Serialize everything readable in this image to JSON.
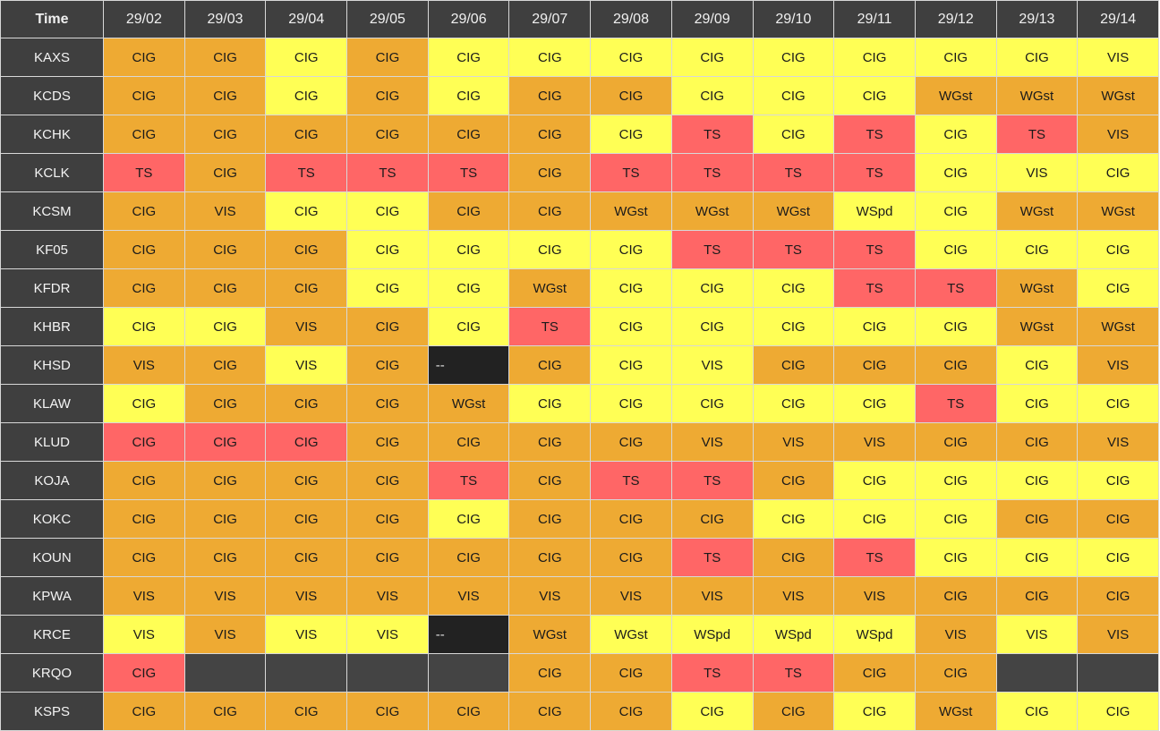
{
  "header": {
    "time_label": "Time",
    "dates": [
      "29/02",
      "29/03",
      "29/04",
      "29/05",
      "29/06",
      "29/07",
      "29/08",
      "29/09",
      "29/10",
      "29/11",
      "29/12",
      "29/13",
      "29/14"
    ]
  },
  "colors": {
    "y": "#ffff55",
    "o": "#eeaa33",
    "r": "#ff6666",
    "k": "#222222",
    "g": "#444444",
    "header_bg": "#3f3f3f"
  },
  "rows": [
    {
      "station": "KAXS",
      "cells": [
        [
          "CIG",
          "o"
        ],
        [
          "CIG",
          "o"
        ],
        [
          "CIG",
          "y"
        ],
        [
          "CIG",
          "o"
        ],
        [
          "CIG",
          "y"
        ],
        [
          "CIG",
          "y"
        ],
        [
          "CIG",
          "y"
        ],
        [
          "CIG",
          "y"
        ],
        [
          "CIG",
          "y"
        ],
        [
          "CIG",
          "y"
        ],
        [
          "CIG",
          "y"
        ],
        [
          "CIG",
          "y"
        ],
        [
          "VIS",
          "y"
        ]
      ]
    },
    {
      "station": "KCDS",
      "cells": [
        [
          "CIG",
          "o"
        ],
        [
          "CIG",
          "o"
        ],
        [
          "CIG",
          "y"
        ],
        [
          "CIG",
          "o"
        ],
        [
          "CIG",
          "y"
        ],
        [
          "CIG",
          "o"
        ],
        [
          "CIG",
          "o"
        ],
        [
          "CIG",
          "y"
        ],
        [
          "CIG",
          "y"
        ],
        [
          "CIG",
          "y"
        ],
        [
          "WGst",
          "o"
        ],
        [
          "WGst",
          "o"
        ],
        [
          "WGst",
          "o"
        ]
      ]
    },
    {
      "station": "KCHK",
      "cells": [
        [
          "CIG",
          "o"
        ],
        [
          "CIG",
          "o"
        ],
        [
          "CIG",
          "o"
        ],
        [
          "CIG",
          "o"
        ],
        [
          "CIG",
          "o"
        ],
        [
          "CIG",
          "o"
        ],
        [
          "CIG",
          "y"
        ],
        [
          "TS",
          "r"
        ],
        [
          "CIG",
          "y"
        ],
        [
          "TS",
          "r"
        ],
        [
          "CIG",
          "y"
        ],
        [
          "TS",
          "r"
        ],
        [
          "VIS",
          "o"
        ]
      ]
    },
    {
      "station": "KCLK",
      "cells": [
        [
          "TS",
          "r"
        ],
        [
          "CIG",
          "o"
        ],
        [
          "TS",
          "r"
        ],
        [
          "TS",
          "r"
        ],
        [
          "TS",
          "r"
        ],
        [
          "CIG",
          "o"
        ],
        [
          "TS",
          "r"
        ],
        [
          "TS",
          "r"
        ],
        [
          "TS",
          "r"
        ],
        [
          "TS",
          "r"
        ],
        [
          "CIG",
          "y"
        ],
        [
          "VIS",
          "y"
        ],
        [
          "CIG",
          "y"
        ]
      ]
    },
    {
      "station": "KCSM",
      "cells": [
        [
          "CIG",
          "o"
        ],
        [
          "VIS",
          "o"
        ],
        [
          "CIG",
          "y"
        ],
        [
          "CIG",
          "y"
        ],
        [
          "CIG",
          "o"
        ],
        [
          "CIG",
          "o"
        ],
        [
          "WGst",
          "o"
        ],
        [
          "WGst",
          "o"
        ],
        [
          "WGst",
          "o"
        ],
        [
          "WSpd",
          "y"
        ],
        [
          "CIG",
          "y"
        ],
        [
          "WGst",
          "o"
        ],
        [
          "WGst",
          "o"
        ]
      ]
    },
    {
      "station": "KF05",
      "cells": [
        [
          "CIG",
          "o"
        ],
        [
          "CIG",
          "o"
        ],
        [
          "CIG",
          "o"
        ],
        [
          "CIG",
          "y"
        ],
        [
          "CIG",
          "y"
        ],
        [
          "CIG",
          "y"
        ],
        [
          "CIG",
          "y"
        ],
        [
          "TS",
          "r"
        ],
        [
          "TS",
          "r"
        ],
        [
          "TS",
          "r"
        ],
        [
          "CIG",
          "y"
        ],
        [
          "CIG",
          "y"
        ],
        [
          "CIG",
          "y"
        ]
      ]
    },
    {
      "station": "KFDR",
      "cells": [
        [
          "CIG",
          "o"
        ],
        [
          "CIG",
          "o"
        ],
        [
          "CIG",
          "o"
        ],
        [
          "CIG",
          "y"
        ],
        [
          "CIG",
          "y"
        ],
        [
          "WGst",
          "o"
        ],
        [
          "CIG",
          "y"
        ],
        [
          "CIG",
          "y"
        ],
        [
          "CIG",
          "y"
        ],
        [
          "TS",
          "r"
        ],
        [
          "TS",
          "r"
        ],
        [
          "WGst",
          "o"
        ],
        [
          "CIG",
          "y"
        ]
      ]
    },
    {
      "station": "KHBR",
      "cells": [
        [
          "CIG",
          "y"
        ],
        [
          "CIG",
          "y"
        ],
        [
          "VIS",
          "o"
        ],
        [
          "CIG",
          "o"
        ],
        [
          "CIG",
          "y"
        ],
        [
          "TS",
          "r"
        ],
        [
          "CIG",
          "y"
        ],
        [
          "CIG",
          "y"
        ],
        [
          "CIG",
          "y"
        ],
        [
          "CIG",
          "y"
        ],
        [
          "CIG",
          "y"
        ],
        [
          "WGst",
          "o"
        ],
        [
          "WGst",
          "o"
        ]
      ]
    },
    {
      "station": "KHSD",
      "cells": [
        [
          "VIS",
          "o"
        ],
        [
          "CIG",
          "o"
        ],
        [
          "VIS",
          "y"
        ],
        [
          "CIG",
          "o"
        ],
        [
          "--",
          "k"
        ],
        [
          "CIG",
          "o"
        ],
        [
          "CIG",
          "y"
        ],
        [
          "VIS",
          "y"
        ],
        [
          "CIG",
          "o"
        ],
        [
          "CIG",
          "o"
        ],
        [
          "CIG",
          "o"
        ],
        [
          "CIG",
          "y"
        ],
        [
          "VIS",
          "o"
        ]
      ]
    },
    {
      "station": "KLAW",
      "cells": [
        [
          "CIG",
          "y"
        ],
        [
          "CIG",
          "o"
        ],
        [
          "CIG",
          "o"
        ],
        [
          "CIG",
          "o"
        ],
        [
          "WGst",
          "o"
        ],
        [
          "CIG",
          "y"
        ],
        [
          "CIG",
          "y"
        ],
        [
          "CIG",
          "y"
        ],
        [
          "CIG",
          "y"
        ],
        [
          "CIG",
          "y"
        ],
        [
          "TS",
          "r"
        ],
        [
          "CIG",
          "y"
        ],
        [
          "CIG",
          "y"
        ]
      ]
    },
    {
      "station": "KLUD",
      "cells": [
        [
          "CIG",
          "r"
        ],
        [
          "CIG",
          "r"
        ],
        [
          "CIG",
          "r"
        ],
        [
          "CIG",
          "o"
        ],
        [
          "CIG",
          "o"
        ],
        [
          "CIG",
          "o"
        ],
        [
          "CIG",
          "o"
        ],
        [
          "VIS",
          "o"
        ],
        [
          "VIS",
          "o"
        ],
        [
          "VIS",
          "o"
        ],
        [
          "CIG",
          "o"
        ],
        [
          "CIG",
          "o"
        ],
        [
          "VIS",
          "o"
        ]
      ]
    },
    {
      "station": "KOJA",
      "cells": [
        [
          "CIG",
          "o"
        ],
        [
          "CIG",
          "o"
        ],
        [
          "CIG",
          "o"
        ],
        [
          "CIG",
          "o"
        ],
        [
          "TS",
          "r"
        ],
        [
          "CIG",
          "o"
        ],
        [
          "TS",
          "r"
        ],
        [
          "TS",
          "r"
        ],
        [
          "CIG",
          "o"
        ],
        [
          "CIG",
          "y"
        ],
        [
          "CIG",
          "y"
        ],
        [
          "CIG",
          "y"
        ],
        [
          "CIG",
          "y"
        ]
      ]
    },
    {
      "station": "KOKC",
      "cells": [
        [
          "CIG",
          "o"
        ],
        [
          "CIG",
          "o"
        ],
        [
          "CIG",
          "o"
        ],
        [
          "CIG",
          "o"
        ],
        [
          "CIG",
          "y"
        ],
        [
          "CIG",
          "o"
        ],
        [
          "CIG",
          "o"
        ],
        [
          "CIG",
          "o"
        ],
        [
          "CIG",
          "y"
        ],
        [
          "CIG",
          "y"
        ],
        [
          "CIG",
          "y"
        ],
        [
          "CIG",
          "o"
        ],
        [
          "CIG",
          "o"
        ]
      ]
    },
    {
      "station": "KOUN",
      "cells": [
        [
          "CIG",
          "o"
        ],
        [
          "CIG",
          "o"
        ],
        [
          "CIG",
          "o"
        ],
        [
          "CIG",
          "o"
        ],
        [
          "CIG",
          "o"
        ],
        [
          "CIG",
          "o"
        ],
        [
          "CIG",
          "o"
        ],
        [
          "TS",
          "r"
        ],
        [
          "CIG",
          "o"
        ],
        [
          "TS",
          "r"
        ],
        [
          "CIG",
          "y"
        ],
        [
          "CIG",
          "y"
        ],
        [
          "CIG",
          "y"
        ]
      ]
    },
    {
      "station": "KPWA",
      "cells": [
        [
          "VIS",
          "o"
        ],
        [
          "VIS",
          "o"
        ],
        [
          "VIS",
          "o"
        ],
        [
          "VIS",
          "o"
        ],
        [
          "VIS",
          "o"
        ],
        [
          "VIS",
          "o"
        ],
        [
          "VIS",
          "o"
        ],
        [
          "VIS",
          "o"
        ],
        [
          "VIS",
          "o"
        ],
        [
          "VIS",
          "o"
        ],
        [
          "CIG",
          "o"
        ],
        [
          "CIG",
          "o"
        ],
        [
          "CIG",
          "o"
        ]
      ]
    },
    {
      "station": "KRCE",
      "cells": [
        [
          "VIS",
          "y"
        ],
        [
          "VIS",
          "o"
        ],
        [
          "VIS",
          "y"
        ],
        [
          "VIS",
          "y"
        ],
        [
          "--",
          "k"
        ],
        [
          "WGst",
          "o"
        ],
        [
          "WGst",
          "y"
        ],
        [
          "WSpd",
          "y"
        ],
        [
          "WSpd",
          "y"
        ],
        [
          "WSpd",
          "y"
        ],
        [
          "VIS",
          "o"
        ],
        [
          "VIS",
          "y"
        ],
        [
          "VIS",
          "o"
        ]
      ]
    },
    {
      "station": "KRQO",
      "cells": [
        [
          "CIG",
          "r"
        ],
        [
          "",
          "g"
        ],
        [
          "",
          "g"
        ],
        [
          "",
          "g"
        ],
        [
          "",
          "g"
        ],
        [
          "CIG",
          "o"
        ],
        [
          "CIG",
          "o"
        ],
        [
          "TS",
          "r"
        ],
        [
          "TS",
          "r"
        ],
        [
          "CIG",
          "o"
        ],
        [
          "CIG",
          "o"
        ],
        [
          "",
          "g"
        ],
        [
          "",
          "g"
        ]
      ]
    },
    {
      "station": "KSPS",
      "cells": [
        [
          "CIG",
          "o"
        ],
        [
          "CIG",
          "o"
        ],
        [
          "CIG",
          "o"
        ],
        [
          "CIG",
          "o"
        ],
        [
          "CIG",
          "o"
        ],
        [
          "CIG",
          "o"
        ],
        [
          "CIG",
          "o"
        ],
        [
          "CIG",
          "y"
        ],
        [
          "CIG",
          "o"
        ],
        [
          "CIG",
          "y"
        ],
        [
          "WGst",
          "o"
        ],
        [
          "CIG",
          "y"
        ],
        [
          "CIG",
          "y"
        ]
      ]
    }
  ]
}
